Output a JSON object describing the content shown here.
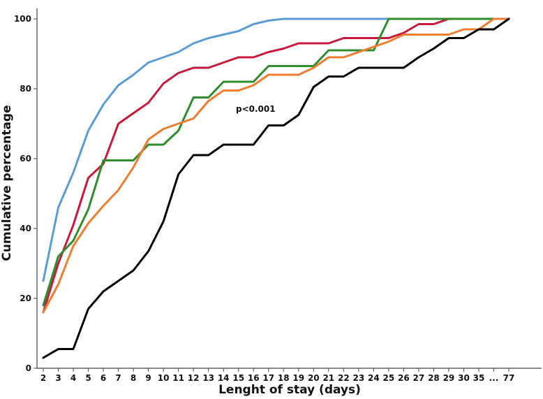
{
  "chart_data": {
    "type": "line",
    "title": "",
    "xlabel": "Lenght of stay (days)",
    "ylabel": "Cumulative percentage",
    "ylim": [
      0,
      100
    ],
    "yticks": [
      "0",
      "20",
      "40",
      "60",
      "80",
      "100"
    ],
    "categories": [
      "2",
      "3",
      "4",
      "5",
      "6",
      "7",
      "8",
      "9",
      "10",
      "11",
      "12",
      "13",
      "14",
      "15",
      "16",
      "17",
      "18",
      "19",
      "20",
      "21",
      "22",
      "23",
      "24",
      "25",
      "26",
      "27",
      "28",
      "29",
      "30",
      "35",
      "...",
      "77"
    ],
    "grid": false,
    "legend": "none",
    "annotation": "p<0.001",
    "series": [
      {
        "color": "#5b9bd5",
        "values": [
          25,
          46,
          56,
          68,
          75.5,
          81,
          84,
          87.5,
          89,
          90.5,
          93,
          94.5,
          95.5,
          96.5,
          98.5,
          99.5,
          100,
          100,
          100,
          100,
          100,
          100,
          100,
          100,
          100,
          100,
          100,
          100,
          100,
          100,
          100,
          100
        ]
      },
      {
        "color": "#c8193c",
        "values": [
          16,
          30,
          41,
          54.5,
          58.5,
          70,
          73,
          76,
          81.5,
          84.5,
          86,
          86,
          87.5,
          89,
          89,
          90.5,
          91.5,
          93,
          93,
          93,
          94.5,
          94.5,
          94.5,
          94.5,
          96,
          98.5,
          98.5,
          100,
          100,
          100,
          100,
          100
        ]
      },
      {
        "color": "#2e8b2e",
        "values": [
          18,
          32,
          36.5,
          45.5,
          59.5,
          59.5,
          59.5,
          64,
          64,
          68,
          77.5,
          77.5,
          82,
          82,
          82,
          86.5,
          86.5,
          86.5,
          86.5,
          91,
          91,
          91,
          91,
          100,
          100,
          100,
          100,
          100,
          100,
          100,
          100,
          100
        ]
      },
      {
        "color": "#ed7d31",
        "values": [
          16,
          24,
          35,
          41.5,
          46.5,
          51,
          57.5,
          65.5,
          68.5,
          70,
          71.5,
          76.5,
          79.5,
          79.5,
          81,
          84,
          84,
          84,
          86,
          89,
          89,
          90.5,
          92,
          93.5,
          95.5,
          95.5,
          95.5,
          95.5,
          97,
          97,
          100,
          100
        ]
      },
      {
        "color": "#000000",
        "values": [
          3,
          5.5,
          5.5,
          17,
          22,
          25,
          28,
          33.5,
          42,
          55.5,
          61,
          61,
          64,
          64,
          64,
          69.5,
          69.5,
          72.5,
          80.5,
          83.5,
          83.5,
          86,
          86,
          86,
          86,
          89,
          91.5,
          94.5,
          94.5,
          97,
          97,
          100
        ]
      }
    ]
  }
}
